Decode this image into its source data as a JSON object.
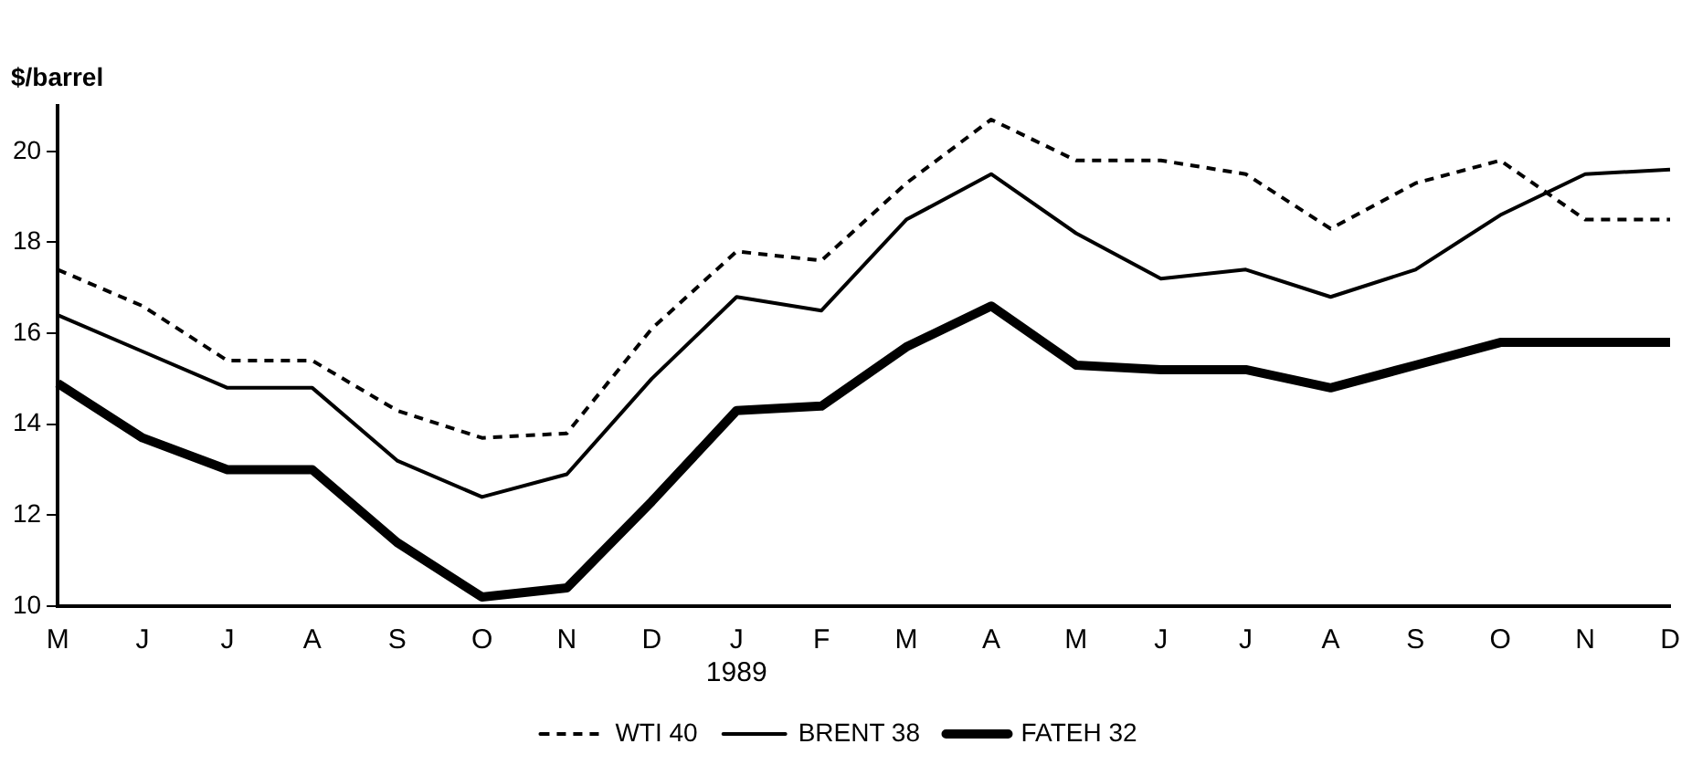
{
  "chart_data": {
    "type": "line",
    "ylabel": "$/barrel",
    "categories": [
      "M",
      "J",
      "J",
      "A",
      "S",
      "O",
      "N",
      "D",
      "J\n1989",
      "F",
      "M",
      "A",
      "M",
      "J",
      "J",
      "A",
      "S",
      "O",
      "N",
      "D"
    ],
    "series": [
      {
        "name": "WTI 40",
        "color": "#000000",
        "line_style": "dashed",
        "values": [
          17.4,
          16.6,
          15.4,
          15.4,
          14.3,
          13.7,
          13.8,
          16.1,
          17.8,
          17.6,
          19.3,
          20.7,
          19.8,
          19.8,
          19.5,
          18.3,
          19.3,
          19.8,
          18.5,
          18.5
        ]
      },
      {
        "name": "BRENT 38",
        "color": "#000000",
        "line_style": "solid",
        "values": [
          16.4,
          15.6,
          14.8,
          14.8,
          13.2,
          12.4,
          12.9,
          15.0,
          16.8,
          16.5,
          18.5,
          19.5,
          18.2,
          17.2,
          17.4,
          16.8,
          17.4,
          18.6,
          19.5,
          19.6
        ]
      },
      {
        "name": "FATEH 32",
        "color": "#000000",
        "line_style": "solid",
        "values": [
          14.9,
          13.7,
          13.0,
          13.0,
          11.4,
          10.2,
          10.4,
          12.3,
          14.3,
          14.4,
          15.7,
          16.6,
          15.3,
          15.2,
          15.2,
          14.8,
          15.3,
          15.8,
          15.8,
          15.8
        ]
      }
    ],
    "ylim": [
      10,
      21
    ],
    "yticks": [
      10,
      12,
      14,
      16,
      18,
      20
    ],
    "grid": false,
    "legend": "bottom",
    "marker": "none"
  }
}
